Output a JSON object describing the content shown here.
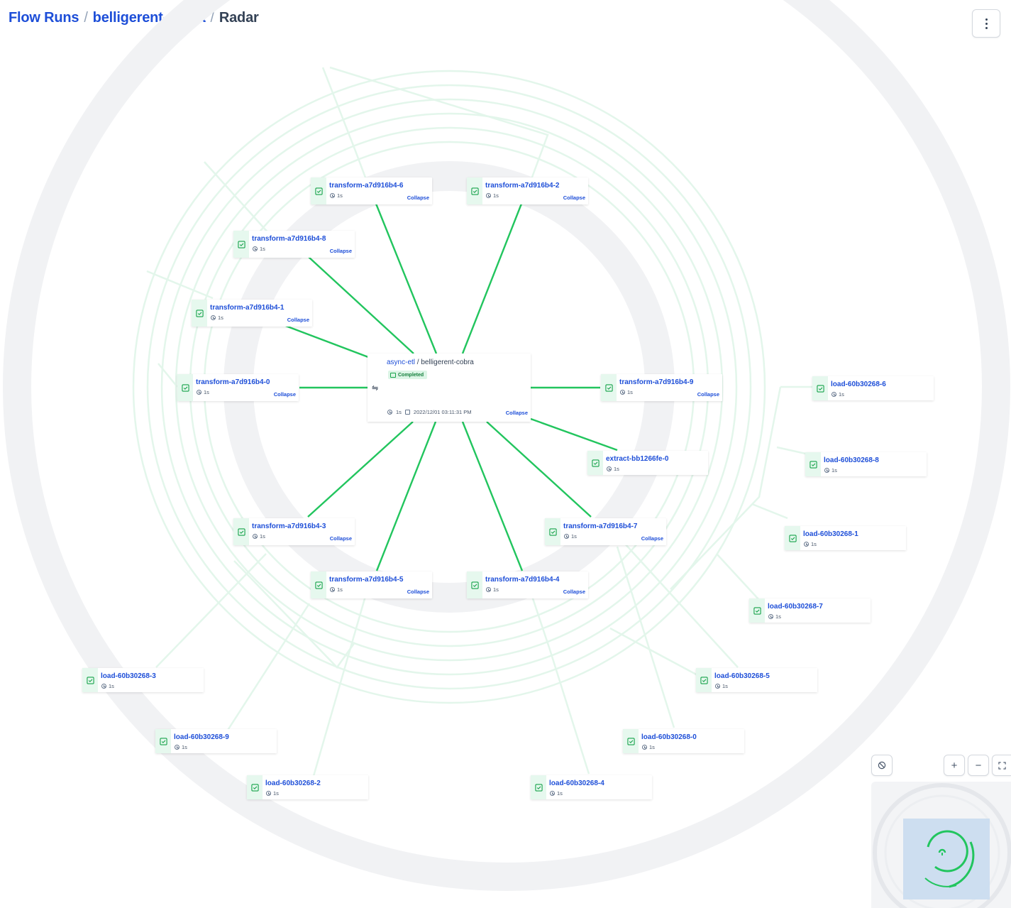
{
  "breadcrumb": {
    "items": [
      "Flow Runs",
      "belligerent-cobra"
    ],
    "separator": "/",
    "current": "Radar"
  },
  "center_node": {
    "flow_name": "async-etl",
    "separator": "/",
    "run_name": "belligerent-cobra",
    "state": "Completed",
    "duration": "1s",
    "start_time": "2022/12/01 03:11:31 PM",
    "collapse_label": "Collapse"
  },
  "task_runs": [
    {
      "name": "transform-a7d916b4-6",
      "duration": "1s",
      "collapse_label": "Collapse"
    },
    {
      "name": "transform-a7d916b4-2",
      "duration": "1s",
      "collapse_label": "Collapse"
    },
    {
      "name": "transform-a7d916b4-8",
      "duration": "1s",
      "collapse_label": "Collapse"
    },
    {
      "name": "transform-a7d916b4-1",
      "duration": "1s",
      "collapse_label": "Collapse"
    },
    {
      "name": "transform-a7d916b4-0",
      "duration": "1s",
      "collapse_label": "Collapse"
    },
    {
      "name": "transform-a7d916b4-9",
      "duration": "1s",
      "collapse_label": "Collapse"
    },
    {
      "name": "extract-bb1266fe-0",
      "duration": "1s"
    },
    {
      "name": "transform-a7d916b4-3",
      "duration": "1s",
      "collapse_label": "Collapse"
    },
    {
      "name": "transform-a7d916b4-7",
      "duration": "1s",
      "collapse_label": "Collapse"
    },
    {
      "name": "transform-a7d916b4-5",
      "duration": "1s",
      "collapse_label": "Collapse"
    },
    {
      "name": "transform-a7d916b4-4",
      "duration": "1s",
      "collapse_label": "Collapse"
    },
    {
      "name": "load-60b30268-6",
      "duration": "1s"
    },
    {
      "name": "load-60b30268-8",
      "duration": "1s"
    },
    {
      "name": "load-60b30268-1",
      "duration": "1s"
    },
    {
      "name": "load-60b30268-7",
      "duration": "1s"
    },
    {
      "name": "load-60b30268-5",
      "duration": "1s"
    },
    {
      "name": "load-60b30268-3",
      "duration": "1s"
    },
    {
      "name": "load-60b30268-9",
      "duration": "1s"
    },
    {
      "name": "load-60b30268-0",
      "duration": "1s"
    },
    {
      "name": "load-60b30268-2",
      "duration": "1s"
    },
    {
      "name": "load-60b30268-4",
      "duration": "1s"
    }
  ],
  "controls": {
    "menu": "more-vertical-icon",
    "reset": "ban-icon",
    "zoom_in": "+",
    "zoom_out": "−",
    "fit": "expand-icon"
  },
  "colors": {
    "link": "#1d4ed8",
    "completed": "#22c55e",
    "completed_bg": "#e6f8ee",
    "ring": "#e8f8ef",
    "minimap_view": "#c9dcf0"
  }
}
